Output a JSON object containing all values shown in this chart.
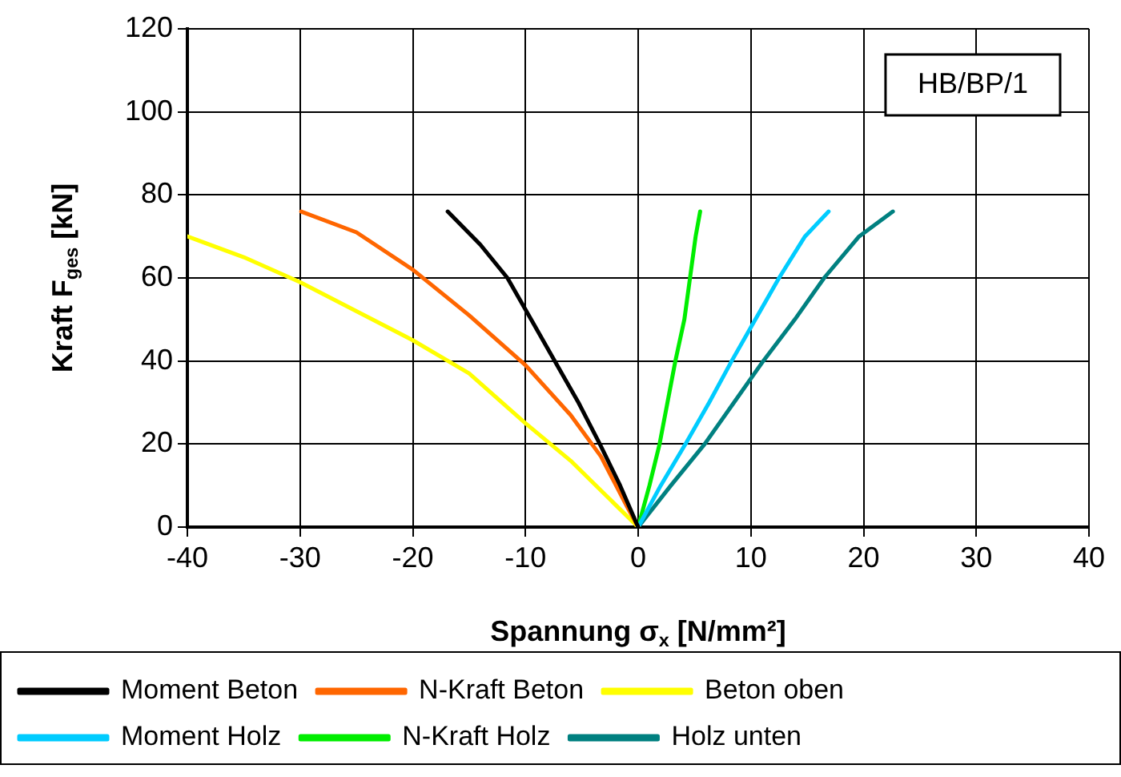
{
  "chart_data": {
    "type": "line",
    "xlabel": "Spannung σ$_{x}$ [N/mm²]",
    "ylabel": "Kraft F$_{ges}$ [kN]",
    "annotations": [
      "HB/BP/1"
    ],
    "xlim": [
      -40,
      40
    ],
    "xticks": [
      -40,
      -30,
      -20,
      -10,
      0,
      10,
      20,
      30,
      40
    ],
    "ylim": [
      0,
      120
    ],
    "yticks": [
      0,
      20,
      40,
      60,
      80,
      100,
      120
    ],
    "grid": true,
    "legend": "bottom",
    "marker": "none",
    "line_style": "solid",
    "series": [
      {
        "name": "Moment Beton",
        "color": "#000000",
        "x": [
          -16.9,
          -14,
          -11.6,
          -9.5,
          -7.4,
          -5.3,
          -3.4,
          -1.6,
          0
        ],
        "values": [
          76,
          68,
          60,
          50,
          40,
          30,
          20,
          10,
          0
        ]
      },
      {
        "name": "N-Kraft Beton",
        "color": "#ff6600",
        "x": [
          -29.9,
          -25,
          -20,
          -15,
          -10,
          -6,
          -3.3,
          -1,
          0
        ],
        "values": [
          76,
          71,
          62,
          51,
          39,
          27,
          17,
          5,
          0
        ]
      },
      {
        "name": "Beton oben",
        "color": "#ffff00",
        "x": [
          -40,
          -35,
          -30,
          -25,
          -20,
          -15,
          -10,
          -6,
          -3,
          0
        ],
        "values": [
          70,
          65,
          59,
          52,
          45,
          37,
          25,
          16,
          8,
          0
        ]
      },
      {
        "name": "Moment Holz",
        "color": "#00ccff",
        "x": [
          0,
          2,
          4.2,
          6.3,
          8.3,
          10.4,
          12.5,
          14.8,
          16.9
        ],
        "values": [
          0,
          10,
          20,
          30,
          40,
          50,
          60,
          70,
          76
        ]
      },
      {
        "name": "N-Kraft Holz",
        "color": "#00ee00",
        "x": [
          0,
          1,
          1.9,
          2.6,
          3.3,
          4.1,
          4.6,
          5.1,
          5.5
        ],
        "values": [
          0,
          10,
          20,
          30,
          40,
          50,
          60,
          70,
          76
        ]
      },
      {
        "name": "Holz unten",
        "color": "#008080",
        "x": [
          0,
          2.9,
          5.9,
          8.5,
          11.1,
          13.9,
          16.5,
          19.6,
          22.6
        ],
        "values": [
          0,
          10,
          20,
          30,
          40,
          50,
          60,
          70,
          76
        ]
      }
    ]
  }
}
